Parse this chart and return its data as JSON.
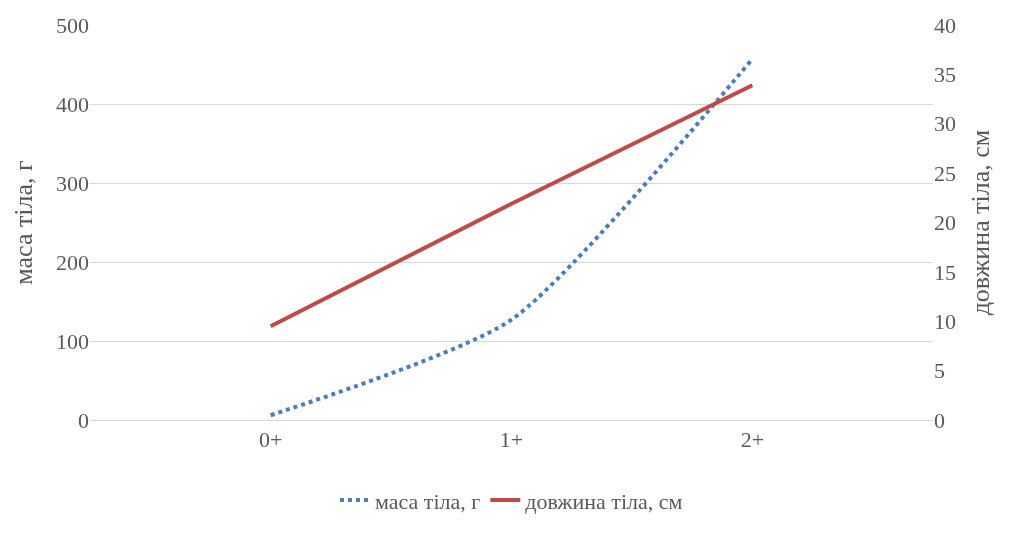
{
  "chart_data": {
    "type": "line",
    "categories": [
      "0+",
      "1+",
      "2+"
    ],
    "ylabel": "маса тіла, г",
    "y2label": "довжина тіла, см",
    "ylim": [
      0,
      500
    ],
    "yticks": [
      0,
      100,
      200,
      300,
      400,
      500
    ],
    "y2lim": [
      0,
      40
    ],
    "y2ticks": [
      0,
      5,
      10,
      15,
      20,
      25,
      30,
      35,
      40
    ],
    "grid": "y",
    "legend": "bottom",
    "series": [
      {
        "name": "маса тіла, г",
        "color": "#4a7ebb",
        "values": [
          6,
          127,
          457
        ],
        "line_style": "dotted"
      },
      {
        "name": "довжина тіла, см",
        "color": "#be4b48",
        "values": [
          9.5,
          21.9,
          33.9
        ],
        "line_style": "solid",
        "axis": "y2"
      }
    ]
  }
}
